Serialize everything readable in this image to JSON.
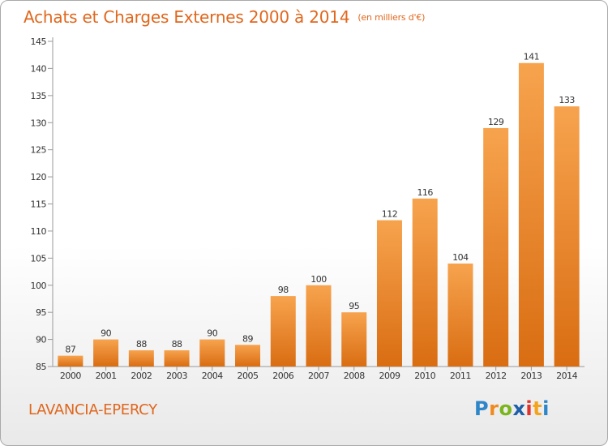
{
  "header": {
    "title": "Achats et Charges Externes 2000 à 2014",
    "unit": "(en milliers d'€)"
  },
  "footer": {
    "commune": "LAVANCIA-EPERCY"
  },
  "logo": {
    "letters": [
      "P",
      "r",
      "o",
      "x",
      "i",
      "t",
      "i"
    ],
    "colors": [
      "#2e86c8",
      "#f08a1d",
      "#7ab51d",
      "#1e5fa8",
      "#e1332c",
      "#f4a41c",
      "#2e86c8"
    ]
  },
  "chart_data": {
    "type": "bar",
    "title": "Achats et Charges Externes 2000 à 2014",
    "subtitle": "(en milliers d'€)",
    "categories": [
      "2000",
      "2001",
      "2002",
      "2003",
      "2004",
      "2005",
      "2006",
      "2007",
      "2008",
      "2009",
      "2010",
      "2011",
      "2012",
      "2013",
      "2014"
    ],
    "values": [
      87,
      90,
      88,
      88,
      90,
      89,
      98,
      100,
      95,
      112,
      116,
      104,
      129,
      141,
      133
    ],
    "ylim": [
      85,
      145
    ],
    "yticks": [
      85,
      90,
      95,
      100,
      105,
      110,
      115,
      120,
      125,
      130,
      135,
      140,
      145
    ],
    "grid": false,
    "bar_color_light": "#f7a34e",
    "bar_color_dark": "#d96d12",
    "axis_color": "#999999",
    "label_color": "#333333"
  }
}
